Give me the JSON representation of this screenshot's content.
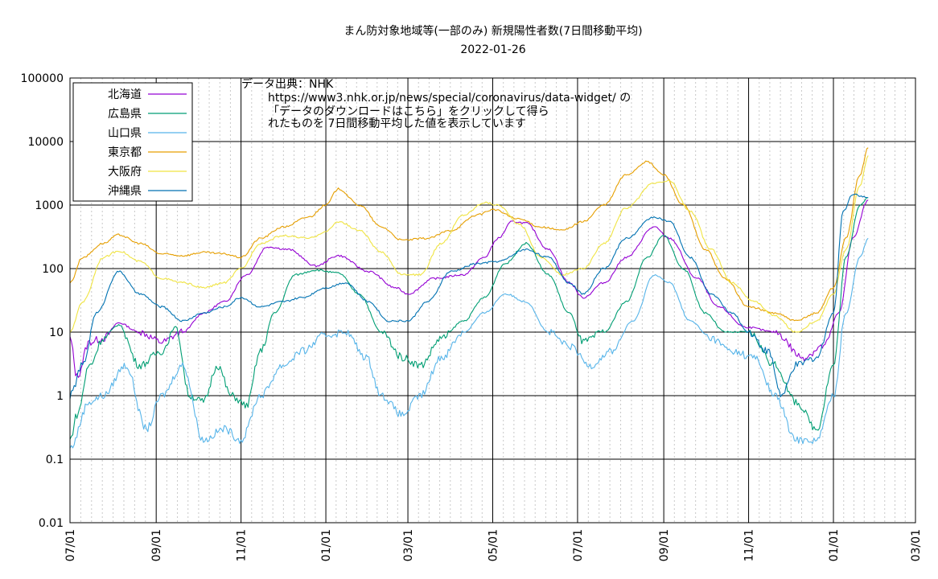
{
  "chart_data": {
    "type": "line",
    "title": "まん防対象地域等(一部のみ)  新規陽性者数(7日間移動平均)",
    "subtitle": "2022-01-26",
    "y_scale": "log",
    "ylim": [
      0.01,
      100000
    ],
    "y_ticks": [
      "100000",
      "10000",
      "1000",
      "100",
      "10",
      "1",
      "0.1",
      "0.01"
    ],
    "xlim": [
      "2020-07-01",
      "2022-03-01"
    ],
    "x_ticks": [
      {
        "date": "2020-07-01",
        "label": "07/01"
      },
      {
        "date": "2020-09-01",
        "label": "09/01"
      },
      {
        "date": "2020-11-01",
        "label": "11/01"
      },
      {
        "date": "2021-01-01",
        "label": "01/01"
      },
      {
        "date": "2021-03-01",
        "label": "03/01"
      },
      {
        "date": "2021-05-01",
        "label": "05/01"
      },
      {
        "date": "2021-07-01",
        "label": "07/01"
      },
      {
        "date": "2021-09-01",
        "label": "09/01"
      },
      {
        "date": "2021-11-01",
        "label": "11/01"
      },
      {
        "date": "2022-01-01",
        "label": "01/01"
      },
      {
        "date": "2022-03-01",
        "label": "03/01"
      }
    ],
    "grid": "major solid, minor dotted vertical",
    "legend_position": "top-left",
    "annotation": [
      "データ出典：NHK",
      "https://www3.nhk.or.jp/news/special/coronavirus/data-widget/ の",
      "「データのダウンロードはこちら」をクリックして得ら",
      "れたものを 7日間移動平均した値を表示しています"
    ],
    "series": [
      {
        "name": "北海道",
        "color": "#9400d3",
        "points": [
          [
            "2020-07-01",
            8
          ],
          [
            "2020-07-06",
            2
          ],
          [
            "2020-07-15",
            7
          ],
          [
            "2020-07-25",
            8
          ],
          [
            "2020-08-05",
            14
          ],
          [
            "2020-08-20",
            10
          ],
          [
            "2020-09-05",
            7
          ],
          [
            "2020-09-20",
            10
          ],
          [
            "2020-10-05",
            20
          ],
          [
            "2020-10-20",
            30
          ],
          [
            "2020-11-05",
            80
          ],
          [
            "2020-11-20",
            220
          ],
          [
            "2020-12-05",
            200
          ],
          [
            "2020-12-25",
            110
          ],
          [
            "2021-01-10",
            160
          ],
          [
            "2021-02-01",
            90
          ],
          [
            "2021-02-20",
            50
          ],
          [
            "2021-03-01",
            40
          ],
          [
            "2021-03-20",
            70
          ],
          [
            "2021-04-10",
            80
          ],
          [
            "2021-04-25",
            150
          ],
          [
            "2021-05-05",
            300
          ],
          [
            "2021-05-15",
            550
          ],
          [
            "2021-05-25",
            520
          ],
          [
            "2021-06-10",
            200
          ],
          [
            "2021-06-25",
            60
          ],
          [
            "2021-07-05",
            35
          ],
          [
            "2021-07-20",
            60
          ],
          [
            "2021-08-05",
            150
          ],
          [
            "2021-08-25",
            450
          ],
          [
            "2021-09-05",
            300
          ],
          [
            "2021-09-25",
            70
          ],
          [
            "2021-10-10",
            25
          ],
          [
            "2021-10-30",
            12
          ],
          [
            "2021-11-20",
            10
          ],
          [
            "2021-12-10",
            4
          ],
          [
            "2021-12-25",
            6
          ],
          [
            "2022-01-05",
            20
          ],
          [
            "2022-01-15",
            300
          ],
          [
            "2022-01-26",
            1200
          ]
        ]
      },
      {
        "name": "広島県",
        "color": "#009e73",
        "points": [
          [
            "2020-07-01",
            0.2
          ],
          [
            "2020-07-06",
            0.5
          ],
          [
            "2020-07-15",
            3
          ],
          [
            "2020-07-25",
            8
          ],
          [
            "2020-08-05",
            13
          ],
          [
            "2020-08-20",
            3
          ],
          [
            "2020-09-05",
            5
          ],
          [
            "2020-09-15",
            12
          ],
          [
            "2020-09-25",
            1
          ],
          [
            "2020-10-05",
            0.8
          ],
          [
            "2020-10-15",
            3
          ],
          [
            "2020-10-25",
            1
          ],
          [
            "2020-11-05",
            0.7
          ],
          [
            "2020-11-15",
            5
          ],
          [
            "2020-11-25",
            20
          ],
          [
            "2020-12-10",
            80
          ],
          [
            "2020-12-25",
            95
          ],
          [
            "2021-01-10",
            85
          ],
          [
            "2021-01-25",
            40
          ],
          [
            "2021-02-10",
            10
          ],
          [
            "2021-02-25",
            4
          ],
          [
            "2021-03-10",
            3
          ],
          [
            "2021-03-25",
            8
          ],
          [
            "2021-04-10",
            15
          ],
          [
            "2021-04-25",
            35
          ],
          [
            "2021-05-10",
            120
          ],
          [
            "2021-05-25",
            250
          ],
          [
            "2021-06-10",
            80
          ],
          [
            "2021-06-25",
            20
          ],
          [
            "2021-07-05",
            7
          ],
          [
            "2021-07-20",
            10
          ],
          [
            "2021-08-05",
            30
          ],
          [
            "2021-08-20",
            150
          ],
          [
            "2021-09-01",
            330
          ],
          [
            "2021-09-15",
            100
          ],
          [
            "2021-10-01",
            20
          ],
          [
            "2021-10-15",
            10
          ],
          [
            "2021-11-01",
            10
          ],
          [
            "2021-11-20",
            3
          ],
          [
            "2021-12-05",
            0.8
          ],
          [
            "2021-12-20",
            0.3
          ],
          [
            "2022-01-01",
            3
          ],
          [
            "2022-01-10",
            150
          ],
          [
            "2022-01-20",
            1000
          ],
          [
            "2022-01-26",
            1300
          ]
        ]
      },
      {
        "name": "山口県",
        "color": "#56b4e9",
        "points": [
          [
            "2020-07-01",
            0.15
          ],
          [
            "2020-07-15",
            0.8
          ],
          [
            "2020-07-25",
            1
          ],
          [
            "2020-08-10",
            3
          ],
          [
            "2020-08-25",
            0.3
          ],
          [
            "2020-09-05",
            1
          ],
          [
            "2020-09-20",
            3
          ],
          [
            "2020-10-05",
            0.2
          ],
          [
            "2020-10-20",
            0.3
          ],
          [
            "2020-11-01",
            0.2
          ],
          [
            "2020-11-15",
            1
          ],
          [
            "2020-12-01",
            3
          ],
          [
            "2020-12-15",
            5
          ],
          [
            "2021-01-01",
            9
          ],
          [
            "2021-01-15",
            10
          ],
          [
            "2021-01-30",
            4
          ],
          [
            "2021-02-10",
            1
          ],
          [
            "2021-02-25",
            0.5
          ],
          [
            "2021-03-10",
            1
          ],
          [
            "2021-03-25",
            4
          ],
          [
            "2021-04-10",
            10
          ],
          [
            "2021-04-25",
            20
          ],
          [
            "2021-05-10",
            40
          ],
          [
            "2021-05-25",
            30
          ],
          [
            "2021-06-10",
            10
          ],
          [
            "2021-06-25",
            6
          ],
          [
            "2021-07-10",
            3
          ],
          [
            "2021-07-25",
            5
          ],
          [
            "2021-08-10",
            15
          ],
          [
            "2021-08-25",
            80
          ],
          [
            "2021-09-05",
            60
          ],
          [
            "2021-09-20",
            15
          ],
          [
            "2021-10-05",
            8
          ],
          [
            "2021-10-20",
            5
          ],
          [
            "2021-11-05",
            4
          ],
          [
            "2021-11-20",
            1
          ],
          [
            "2021-12-05",
            0.2
          ],
          [
            "2021-12-20",
            0.2
          ],
          [
            "2022-01-01",
            1
          ],
          [
            "2022-01-10",
            20
          ],
          [
            "2022-01-20",
            150
          ],
          [
            "2022-01-26",
            300
          ]
        ]
      },
      {
        "name": "東京都",
        "color": "#e69f00",
        "points": [
          [
            "2020-07-01",
            60
          ],
          [
            "2020-07-10",
            150
          ],
          [
            "2020-07-25",
            250
          ],
          [
            "2020-08-05",
            340
          ],
          [
            "2020-08-20",
            250
          ],
          [
            "2020-09-05",
            170
          ],
          [
            "2020-09-20",
            160
          ],
          [
            "2020-10-05",
            180
          ],
          [
            "2020-10-20",
            170
          ],
          [
            "2020-11-01",
            150
          ],
          [
            "2020-11-15",
            300
          ],
          [
            "2020-12-01",
            450
          ],
          [
            "2020-12-20",
            650
          ],
          [
            "2021-01-01",
            1000
          ],
          [
            "2021-01-10",
            1800
          ],
          [
            "2021-01-25",
            1000
          ],
          [
            "2021-02-10",
            450
          ],
          [
            "2021-02-25",
            280
          ],
          [
            "2021-03-15",
            300
          ],
          [
            "2021-04-01",
            400
          ],
          [
            "2021-04-20",
            700
          ],
          [
            "2021-05-01",
            850
          ],
          [
            "2021-05-20",
            600
          ],
          [
            "2021-06-05",
            450
          ],
          [
            "2021-06-20",
            400
          ],
          [
            "2021-07-05",
            550
          ],
          [
            "2021-07-20",
            1000
          ],
          [
            "2021-08-05",
            3000
          ],
          [
            "2021-08-20",
            4800
          ],
          [
            "2021-09-01",
            3000
          ],
          [
            "2021-09-15",
            1000
          ],
          [
            "2021-10-01",
            200
          ],
          [
            "2021-10-15",
            70
          ],
          [
            "2021-11-01",
            25
          ],
          [
            "2021-11-20",
            20
          ],
          [
            "2021-12-05",
            15
          ],
          [
            "2021-12-20",
            20
          ],
          [
            "2022-01-01",
            50
          ],
          [
            "2022-01-10",
            300
          ],
          [
            "2022-01-20",
            3000
          ],
          [
            "2022-01-26",
            8000
          ]
        ]
      },
      {
        "name": "大阪府",
        "color": "#f0e442",
        "points": [
          [
            "2020-07-01",
            10
          ],
          [
            "2020-07-10",
            30
          ],
          [
            "2020-07-25",
            150
          ],
          [
            "2020-08-05",
            190
          ],
          [
            "2020-08-20",
            130
          ],
          [
            "2020-09-05",
            70
          ],
          [
            "2020-09-20",
            60
          ],
          [
            "2020-10-05",
            50
          ],
          [
            "2020-10-20",
            60
          ],
          [
            "2020-11-01",
            100
          ],
          [
            "2020-11-15",
            250
          ],
          [
            "2020-12-01",
            330
          ],
          [
            "2020-12-20",
            300
          ],
          [
            "2021-01-01",
            380
          ],
          [
            "2021-01-10",
            550
          ],
          [
            "2021-01-25",
            400
          ],
          [
            "2021-02-10",
            180
          ],
          [
            "2021-02-25",
            80
          ],
          [
            "2021-03-10",
            80
          ],
          [
            "2021-03-25",
            250
          ],
          [
            "2021-04-10",
            700
          ],
          [
            "2021-04-25",
            1100
          ],
          [
            "2021-05-05",
            1000
          ],
          [
            "2021-05-20",
            500
          ],
          [
            "2021-06-05",
            150
          ],
          [
            "2021-06-20",
            80
          ],
          [
            "2021-07-05",
            100
          ],
          [
            "2021-07-20",
            250
          ],
          [
            "2021-08-05",
            900
          ],
          [
            "2021-08-25",
            2200
          ],
          [
            "2021-09-05",
            2400
          ],
          [
            "2021-09-20",
            800
          ],
          [
            "2021-10-05",
            200
          ],
          [
            "2021-10-20",
            60
          ],
          [
            "2021-11-05",
            30
          ],
          [
            "2021-11-20",
            18
          ],
          [
            "2021-12-05",
            10
          ],
          [
            "2021-12-20",
            15
          ],
          [
            "2022-01-01",
            40
          ],
          [
            "2022-01-10",
            200
          ],
          [
            "2022-01-20",
            2000
          ],
          [
            "2022-01-26",
            6000
          ]
        ]
      },
      {
        "name": "沖縄県",
        "color": "#0072b2",
        "points": [
          [
            "2020-07-01",
            1
          ],
          [
            "2020-07-10",
            3
          ],
          [
            "2020-07-20",
            20
          ],
          [
            "2020-08-05",
            90
          ],
          [
            "2020-08-20",
            40
          ],
          [
            "2020-09-05",
            25
          ],
          [
            "2020-09-20",
            15
          ],
          [
            "2020-10-05",
            20
          ],
          [
            "2020-10-20",
            25
          ],
          [
            "2020-11-01",
            35
          ],
          [
            "2020-11-15",
            25
          ],
          [
            "2020-12-01",
            30
          ],
          [
            "2020-12-15",
            35
          ],
          [
            "2021-01-01",
            50
          ],
          [
            "2021-01-15",
            60
          ],
          [
            "2021-02-01",
            30
          ],
          [
            "2021-02-15",
            15
          ],
          [
            "2021-03-01",
            15
          ],
          [
            "2021-03-15",
            30
          ],
          [
            "2021-04-01",
            90
          ],
          [
            "2021-04-20",
            120
          ],
          [
            "2021-05-05",
            130
          ],
          [
            "2021-05-25",
            200
          ],
          [
            "2021-06-10",
            150
          ],
          [
            "2021-06-25",
            60
          ],
          [
            "2021-07-05",
            40
          ],
          [
            "2021-07-20",
            100
          ],
          [
            "2021-08-05",
            300
          ],
          [
            "2021-08-25",
            650
          ],
          [
            "2021-09-05",
            550
          ],
          [
            "2021-09-20",
            150
          ],
          [
            "2021-10-05",
            40
          ],
          [
            "2021-10-20",
            20
          ],
          [
            "2021-11-01",
            10
          ],
          [
            "2021-11-15",
            5
          ],
          [
            "2021-11-25",
            1
          ],
          [
            "2021-12-05",
            3
          ],
          [
            "2021-12-20",
            4
          ],
          [
            "2022-01-01",
            20
          ],
          [
            "2022-01-08",
            800
          ],
          [
            "2022-01-15",
            1500
          ],
          [
            "2022-01-26",
            1300
          ]
        ]
      }
    ]
  }
}
